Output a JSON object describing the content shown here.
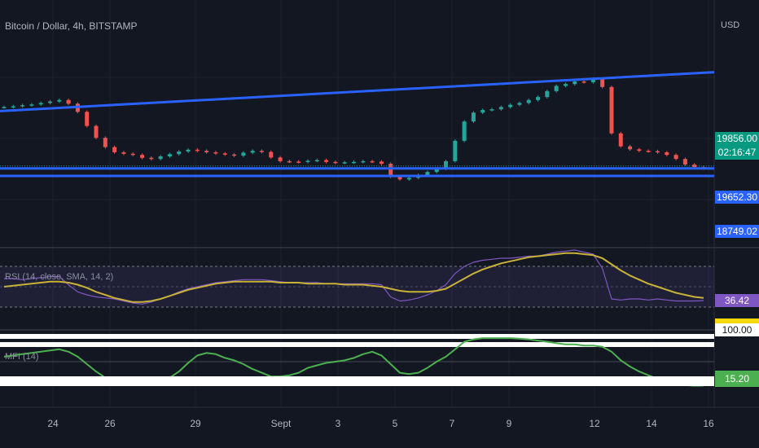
{
  "header": {
    "title": "Bitcoin / Dollar, 4h, BITSTAMP",
    "currency": "USD"
  },
  "price_scale": {
    "last_price": "19856.00",
    "countdown": "02:16:47",
    "line_1": "19652.30",
    "line_2": "18749.02",
    "colors": {
      "last": "#089981",
      "line": "#2962ff"
    }
  },
  "rsi": {
    "label": "RSI (14, close, SMA, 14, 2)",
    "value": "36.42",
    "color": "#7e57c2",
    "sma_color": "#c9b23a",
    "upper_band": 70,
    "lower_band": 30
  },
  "mfi": {
    "label": "MFI (14)",
    "value": "15.20",
    "top_value": "100.00",
    "color": "#4caf50"
  },
  "x_axis": {
    "labels": [
      "24",
      "26",
      "29",
      "Sept",
      "3",
      "5",
      "7",
      "9",
      "12",
      "14",
      "16"
    ]
  },
  "chart_data": [
    {
      "type": "line",
      "title": "Bitcoin / Dollar, 4h, BITSTAMP",
      "x_labels": [
        "24",
        "26",
        "29",
        "Sept",
        "3",
        "5",
        "7",
        "9",
        "12",
        "14",
        "16"
      ],
      "series": [
        {
          "name": "",
          "values": [
            21510,
            21530,
            21560,
            21580,
            21620,
            21660,
            21700,
            21600,
            21380,
            21000,
            20680,
            20430,
            20290,
            20250,
            20220,
            20140,
            20110,
            20180,
            20240,
            20310,
            20360,
            20330,
            20290,
            20260,
            20230,
            20200,
            20280,
            20330,
            20300,
            20150,
            20050,
            20040,
            20030,
            20060,
            20080,
            20030,
            20010,
            20020,
            20030,
            20050,
            20040,
            19980,
            19630,
            19560,
            19600,
            19680,
            19760,
            19850,
            20050,
            20600,
            21120,
            21360,
            21430,
            21450,
            21510,
            21570,
            21620,
            21700,
            21780,
            21940,
            22080,
            22130,
            22200,
            22180,
            22270,
            22050,
            20800,
            20450,
            20370,
            20330,
            20320,
            20290,
            20220,
            20110,
            19960,
            19890,
            19856
          ]
        }
      ],
      "trendlines": [
        {
          "name": "",
          "from": 21400,
          "to": 22450
        },
        {
          "name": "",
          "value": 19856
        },
        {
          "name": "",
          "value": 19652.3
        }
      ]
    },
    {
      "type": "line",
      "title": "RSI (14, close, SMA, 14, 2)",
      "ylim": [
        0,
        100
      ],
      "series": [
        {
          "name": "",
          "values": [
            58,
            58,
            57,
            58,
            59,
            60,
            60,
            52,
            45,
            42,
            40,
            39,
            38,
            36,
            34,
            33,
            35,
            38,
            41,
            45,
            48,
            50,
            52,
            54,
            55,
            56,
            57,
            57,
            57,
            56,
            55,
            54,
            54,
            54,
            54,
            53,
            53,
            53,
            53,
            53,
            53,
            52,
            40,
            36,
            37,
            39,
            42,
            46,
            52,
            63,
            70,
            74,
            76,
            77,
            78,
            78,
            79,
            80,
            80,
            82,
            84,
            85,
            86,
            84,
            82,
            68,
            38,
            37,
            38,
            38,
            37,
            38,
            37,
            36,
            36,
            36,
            36.42
          ]
        },
        {
          "name": "",
          "values": [
            50,
            51,
            52,
            53,
            54,
            55,
            55,
            54,
            52,
            49,
            45,
            42,
            39,
            37,
            35,
            35,
            36,
            38,
            41,
            44,
            47,
            49,
            51,
            53,
            54,
            55,
            55,
            55,
            55,
            55,
            54,
            54,
            54,
            53,
            53,
            53,
            53,
            52,
            52,
            52,
            51,
            50,
            48,
            46,
            45,
            45,
            45,
            46,
            48,
            53,
            58,
            63,
            67,
            70,
            73,
            75,
            77,
            79,
            80,
            81,
            82,
            83,
            83,
            82,
            81,
            78,
            72,
            66,
            61,
            57,
            53,
            50,
            47,
            44,
            42,
            40,
            39
          ]
        }
      ]
    },
    {
      "type": "line",
      "title": "MFI (14)",
      "ylim": [
        0,
        100
      ],
      "series": [
        {
          "name": "",
          "values": [
            62,
            64,
            66,
            68,
            70,
            72,
            74,
            70,
            62,
            50,
            38,
            28,
            22,
            18,
            16,
            16,
            17,
            20,
            28,
            38,
            52,
            64,
            68,
            66,
            60,
            56,
            50,
            42,
            36,
            30,
            30,
            32,
            36,
            44,
            48,
            52,
            54,
            56,
            60,
            66,
            70,
            64,
            50,
            36,
            34,
            36,
            44,
            54,
            62,
            74,
            86,
            90,
            92,
            92,
            92,
            92,
            91,
            90,
            88,
            86,
            84,
            82,
            82,
            80,
            80,
            78,
            70,
            56,
            46,
            38,
            32,
            26,
            22,
            18,
            16,
            15,
            15.2
          ]
        }
      ]
    }
  ]
}
